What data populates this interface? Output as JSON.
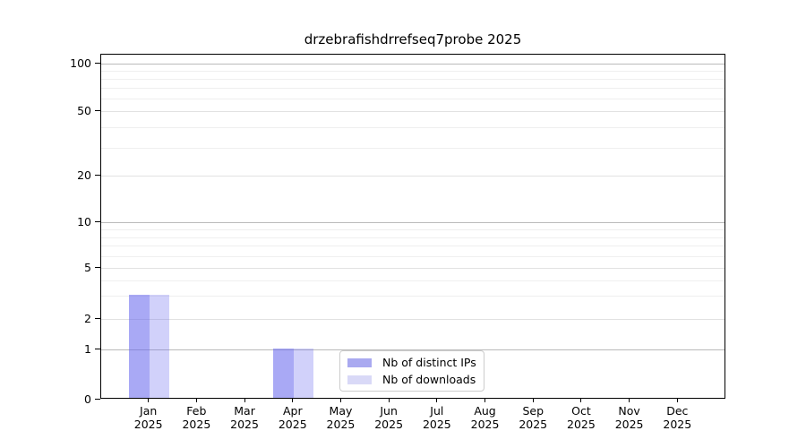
{
  "title": "drzebrafishdrrefseq7probe 2025",
  "chart_data": {
    "type": "bar",
    "title": "drzebrafishdrrefseq7probe 2025",
    "x": {
      "months": [
        "Jan",
        "Feb",
        "Mar",
        "Apr",
        "May",
        "Jun",
        "Jul",
        "Aug",
        "Sep",
        "Oct",
        "Nov",
        "Dec"
      ],
      "year": "2025"
    },
    "series": [
      {
        "name": "Nb of distinct IPs",
        "color": "#a9a9f0",
        "fill": "rgba(102,102,238,0.56)",
        "values": [
          3,
          0,
          0,
          1,
          0,
          0,
          0,
          0,
          0,
          0,
          0,
          0
        ]
      },
      {
        "name": "Nb of downloads",
        "color": "#d9d9f7",
        "fill": "rgba(102,102,238,0.30)",
        "values": [
          3,
          0,
          0,
          1,
          0,
          0,
          0,
          0,
          0,
          0,
          0,
          0
        ]
      }
    ],
    "y_axis": {
      "tick_values": [
        0,
        1,
        2,
        5,
        10,
        20,
        50,
        100
      ],
      "minor_gridline_values": [
        3,
        4,
        6,
        7,
        8,
        9,
        30,
        40,
        60,
        70,
        80,
        90
      ],
      "scale": "log-like with linear 0-1 segment",
      "ylim": [
        0,
        110
      ]
    },
    "legend": {
      "entries": [
        "Nb of distinct IPs",
        "Nb of downloads"
      ],
      "position": "bottom-center"
    },
    "grid": true
  },
  "colors": {
    "background": "#ffffff",
    "axis": "#000000",
    "text": "#000000",
    "decade_gridline": "#bababa",
    "tick_gridline": "#e2e2e2",
    "minor_gridline": "#efefef",
    "legend_border": "#cccccc",
    "bar_distinct_ips": "#a9a9f0",
    "bar_downloads": "#d9d9f7"
  }
}
